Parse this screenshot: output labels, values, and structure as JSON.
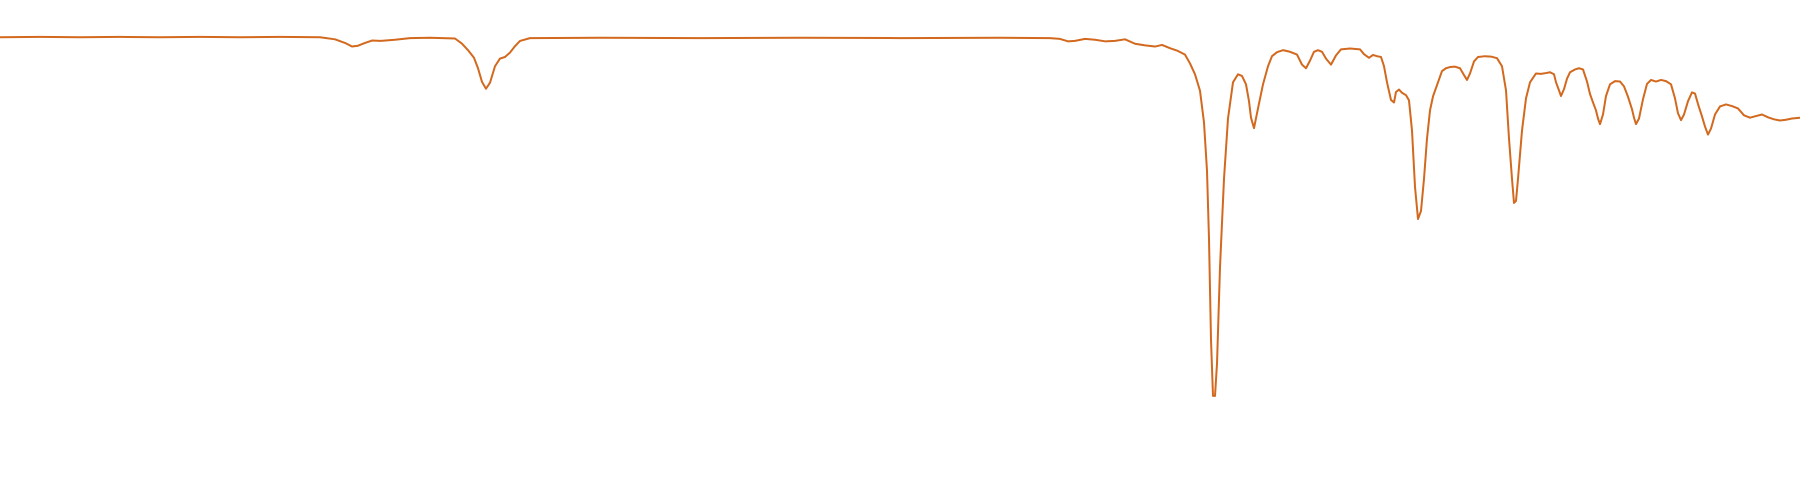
{
  "chart_data": {
    "type": "line",
    "title": "",
    "xlabel": "",
    "ylabel": "",
    "grid": false,
    "legend": "none",
    "axes_visible": false,
    "ylim": [
      0,
      100
    ],
    "xlim": [
      0,
      1800
    ],
    "series": [
      {
        "color": "#d2691e",
        "points": [
          [
            0,
            95.2
          ],
          [
            40,
            95.3
          ],
          [
            80,
            95.2
          ],
          [
            120,
            95.3
          ],
          [
            160,
            95.2
          ],
          [
            200,
            95.3
          ],
          [
            240,
            95.2
          ],
          [
            280,
            95.3
          ],
          [
            320,
            95.2
          ],
          [
            335,
            94.7
          ],
          [
            345,
            93.8
          ],
          [
            352,
            92.9
          ],
          [
            358,
            93.1
          ],
          [
            365,
            93.8
          ],
          [
            372,
            94.4
          ],
          [
            380,
            94.3
          ],
          [
            395,
            94.6
          ],
          [
            410,
            95.0
          ],
          [
            430,
            95.1
          ],
          [
            455,
            94.9
          ],
          [
            462,
            93.6
          ],
          [
            468,
            92.0
          ],
          [
            474,
            90.1
          ],
          [
            478,
            87.5
          ],
          [
            482,
            84.1
          ],
          [
            486,
            82.4
          ],
          [
            490,
            83.9
          ],
          [
            495,
            88.0
          ],
          [
            500,
            89.9
          ],
          [
            505,
            90.3
          ],
          [
            510,
            91.4
          ],
          [
            515,
            93.0
          ],
          [
            520,
            94.3
          ],
          [
            530,
            95.0
          ],
          [
            600,
            95.1
          ],
          [
            700,
            95.0
          ],
          [
            800,
            95.1
          ],
          [
            900,
            95.0
          ],
          [
            1000,
            95.1
          ],
          [
            1050,
            95.0
          ],
          [
            1060,
            94.8
          ],
          [
            1068,
            94.2
          ],
          [
            1075,
            94.3
          ],
          [
            1085,
            94.8
          ],
          [
            1095,
            94.6
          ],
          [
            1105,
            94.2
          ],
          [
            1115,
            94.3
          ],
          [
            1125,
            94.7
          ],
          [
            1135,
            93.6
          ],
          [
            1145,
            93.2
          ],
          [
            1155,
            92.9
          ],
          [
            1162,
            93.3
          ],
          [
            1170,
            92.5
          ],
          [
            1178,
            91.8
          ],
          [
            1185,
            90.9
          ],
          [
            1190,
            88.7
          ],
          [
            1195,
            86.0
          ],
          [
            1200,
            81.9
          ],
          [
            1204,
            74.0
          ],
          [
            1207,
            62.0
          ],
          [
            1209,
            45.0
          ],
          [
            1211,
            20.0
          ],
          [
            1213,
            6.0
          ],
          [
            1215,
            6.0
          ],
          [
            1217,
            14.0
          ],
          [
            1220,
            38.0
          ],
          [
            1224,
            60.0
          ],
          [
            1228,
            75.0
          ],
          [
            1233,
            84.0
          ],
          [
            1238,
            86.0
          ],
          [
            1242,
            85.6
          ],
          [
            1246,
            83.5
          ],
          [
            1249,
            79.3
          ],
          [
            1251,
            75.2
          ],
          [
            1254,
            72.6
          ],
          [
            1258,
            77.5
          ],
          [
            1263,
            83.5
          ],
          [
            1268,
            88.0
          ],
          [
            1272,
            90.5
          ],
          [
            1277,
            91.5
          ],
          [
            1283,
            92.0
          ],
          [
            1290,
            91.6
          ],
          [
            1297,
            90.9
          ],
          [
            1302,
            88.4
          ],
          [
            1306,
            87.5
          ],
          [
            1310,
            89.4
          ],
          [
            1314,
            91.6
          ],
          [
            1318,
            92.0
          ],
          [
            1322,
            91.6
          ],
          [
            1326,
            89.9
          ],
          [
            1331,
            88.4
          ],
          [
            1336,
            90.7
          ],
          [
            1341,
            92.2
          ],
          [
            1350,
            92.4
          ],
          [
            1360,
            92.2
          ],
          [
            1364,
            91.0
          ],
          [
            1369,
            90.1
          ],
          [
            1373,
            90.8
          ],
          [
            1377,
            90.5
          ],
          [
            1381,
            90.3
          ],
          [
            1384,
            88.0
          ],
          [
            1387,
            84.0
          ],
          [
            1391,
            79.6
          ],
          [
            1394,
            79.0
          ],
          [
            1396,
            81.6
          ],
          [
            1399,
            82.2
          ],
          [
            1402,
            81.4
          ],
          [
            1406,
            80.8
          ],
          [
            1409,
            79.5
          ],
          [
            1412,
            72.0
          ],
          [
            1415,
            58.0
          ],
          [
            1418,
            50.0
          ],
          [
            1421,
            52.0
          ],
          [
            1424,
            60.0
          ],
          [
            1427,
            70.0
          ],
          [
            1430,
            77.0
          ],
          [
            1433,
            80.5
          ],
          [
            1438,
            84.0
          ],
          [
            1442,
            86.8
          ],
          [
            1446,
            87.5
          ],
          [
            1450,
            87.8
          ],
          [
            1455,
            87.9
          ],
          [
            1460,
            87.5
          ],
          [
            1464,
            85.8
          ],
          [
            1467,
            84.6
          ],
          [
            1470,
            86.2
          ],
          [
            1474,
            89.2
          ],
          [
            1478,
            90.3
          ],
          [
            1485,
            90.5
          ],
          [
            1491,
            90.4
          ],
          [
            1497,
            90.0
          ],
          [
            1502,
            88.0
          ],
          [
            1506,
            82.0
          ],
          [
            1509,
            70.0
          ],
          [
            1512,
            60.0
          ],
          [
            1514,
            54.0
          ],
          [
            1516,
            54.5
          ],
          [
            1518,
            60.0
          ],
          [
            1522,
            72.0
          ],
          [
            1526,
            80.0
          ],
          [
            1530,
            84.0
          ],
          [
            1536,
            86.2
          ],
          [
            1541,
            86.1
          ],
          [
            1546,
            86.3
          ],
          [
            1550,
            86.5
          ],
          [
            1554,
            86.0
          ],
          [
            1556,
            84.0
          ],
          [
            1559,
            82.0
          ],
          [
            1561,
            80.6
          ],
          [
            1564,
            82.3
          ],
          [
            1567,
            84.9
          ],
          [
            1570,
            86.5
          ],
          [
            1575,
            87.2
          ],
          [
            1579,
            87.5
          ],
          [
            1583,
            87.2
          ],
          [
            1587,
            84.2
          ],
          [
            1590,
            81.1
          ],
          [
            1593,
            79.0
          ],
          [
            1596,
            77.0
          ],
          [
            1598,
            75.0
          ],
          [
            1600,
            73.6
          ],
          [
            1603,
            76.0
          ],
          [
            1606,
            80.6
          ],
          [
            1610,
            83.5
          ],
          [
            1615,
            84.3
          ],
          [
            1620,
            84.2
          ],
          [
            1624,
            83.0
          ],
          [
            1628,
            80.4
          ],
          [
            1632,
            77.3
          ],
          [
            1634,
            75.2
          ],
          [
            1636,
            73.6
          ],
          [
            1639,
            75.0
          ],
          [
            1643,
            79.8
          ],
          [
            1647,
            83.6
          ],
          [
            1651,
            84.6
          ],
          [
            1656,
            84.2
          ],
          [
            1661,
            84.6
          ],
          [
            1666,
            84.3
          ],
          [
            1671,
            83.5
          ],
          [
            1675,
            80.0
          ],
          [
            1678,
            76.3
          ],
          [
            1681,
            74.6
          ],
          [
            1684,
            76.0
          ],
          [
            1688,
            79.3
          ],
          [
            1692,
            81.5
          ],
          [
            1695,
            81.2
          ],
          [
            1698,
            78.6
          ],
          [
            1702,
            75.5
          ],
          [
            1705,
            73.0
          ],
          [
            1708,
            71.0
          ],
          [
            1711,
            72.5
          ],
          [
            1715,
            76.0
          ],
          [
            1720,
            78.0
          ],
          [
            1726,
            78.5
          ],
          [
            1732,
            78.1
          ],
          [
            1738,
            77.5
          ],
          [
            1744,
            75.8
          ],
          [
            1750,
            75.2
          ],
          [
            1756,
            75.6
          ],
          [
            1762,
            76.0
          ],
          [
            1768,
            75.3
          ],
          [
            1774,
            74.8
          ],
          [
            1780,
            74.5
          ],
          [
            1786,
            74.7
          ],
          [
            1792,
            75.0
          ],
          [
            1800,
            75.2
          ]
        ]
      }
    ]
  }
}
